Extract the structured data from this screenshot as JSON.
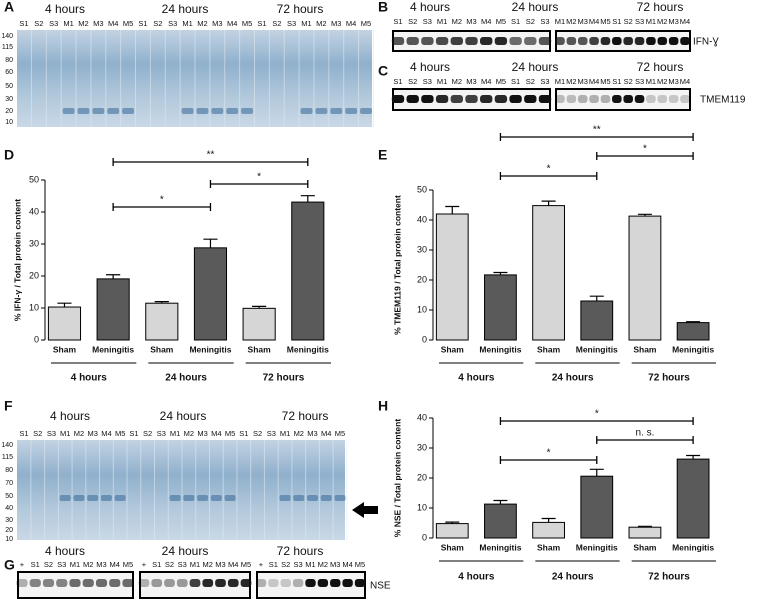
{
  "chart_data": [
    {
      "type": "bar",
      "panel": "D",
      "y_label": "% IFN-γ / Total protein content",
      "categories": [
        "4 hours",
        "24 hours",
        "72 hours"
      ],
      "series": [
        {
          "name": "Sham",
          "color": "#d6d6d6",
          "values": [
            10.3,
            11.5,
            9.9
          ],
          "errors": [
            1.2,
            0.5,
            0.6
          ]
        },
        {
          "name": "Meningitis",
          "color": "#5a5a5a",
          "values": [
            19.1,
            28.8,
            43.1
          ],
          "errors": [
            1.3,
            2.7,
            2.0
          ]
        }
      ],
      "ylim": [
        0,
        50
      ],
      "yticks": [
        0,
        10,
        20,
        30,
        40,
        50
      ],
      "annotations": [
        "**",
        "*",
        "*"
      ]
    },
    {
      "type": "bar",
      "panel": "E",
      "y_label": "% TMEM119 / Total protein content",
      "categories": [
        "4 hours",
        "24 hours",
        "72 hours"
      ],
      "series": [
        {
          "name": "Sham",
          "color": "#d6d6d6",
          "values": [
            42,
            44.8,
            41.3
          ],
          "errors": [
            2.5,
            1.5,
            0.6
          ]
        },
        {
          "name": "Meningitis",
          "color": "#5a5a5a",
          "values": [
            21.7,
            13,
            5.8
          ],
          "errors": [
            0.8,
            1.6,
            0.3
          ]
        }
      ],
      "ylim": [
        0,
        50
      ],
      "yticks": [
        0,
        10,
        20,
        30,
        40,
        50
      ],
      "annotations": [
        "**",
        "*",
        "*"
      ]
    },
    {
      "type": "bar",
      "panel": "H",
      "y_label": "% NSE / Total protein content",
      "categories": [
        "4 hours",
        "24 hours",
        "72 hours"
      ],
      "series": [
        {
          "name": "Sham",
          "color": "#d6d6d6",
          "values": [
            4.8,
            5.2,
            3.6
          ],
          "errors": [
            0.5,
            1.3,
            0.3
          ]
        },
        {
          "name": "Meningitis",
          "color": "#5a5a5a",
          "values": [
            11.3,
            20.6,
            26.3
          ],
          "errors": [
            1.2,
            2.3,
            1.2
          ]
        }
      ],
      "ylim": [
        0,
        40
      ],
      "yticks": [
        0,
        10,
        20,
        30,
        40
      ],
      "annotations": [
        "*",
        "n. s.",
        "*"
      ]
    }
  ],
  "blots": {
    "A": {
      "letter": "A",
      "times": [
        "4 hours",
        "24 hours",
        "72 hours"
      ],
      "lanes": [
        [
          "S1",
          "S2",
          "S3",
          "M1",
          "M2",
          "M3",
          "M4",
          "M5",
          "S1",
          "S2",
          "S3",
          "M1",
          "M2",
          "M3",
          "M4",
          "M5",
          "S1",
          "S2",
          "S3",
          "M1",
          "M2",
          "M3",
          "M4",
          "M5"
        ]
      ],
      "ladder": [
        140,
        115,
        80,
        60,
        50,
        30,
        20,
        10
      ]
    },
    "B": {
      "letter": "B",
      "times": [
        "4 hours",
        "24 hours",
        "72 hours"
      ],
      "lanes": [
        [
          "S1",
          "S2",
          "S3",
          "M1",
          "M2",
          "M3",
          "M4",
          "M5",
          "S1",
          "S2",
          "S3"
        ],
        [
          "M1",
          "M2",
          "M3",
          "M4",
          "M5",
          "S1",
          "S2",
          "S3",
          "M1",
          "M2",
          "M3",
          "M4"
        ]
      ],
      "target": "IFN-Ɣ"
    },
    "C": {
      "letter": "C",
      "times": [
        "4 hours",
        "24 hours",
        "72 hours"
      ],
      "lanes": [
        [
          "S1",
          "S2",
          "S3",
          "M1",
          "M2",
          "M3",
          "M4",
          "M5",
          "S1",
          "S2",
          "S3"
        ],
        [
          "M1",
          "M2",
          "M3",
          "M4",
          "M5",
          "S1",
          "S2",
          "S3",
          "M1",
          "M2",
          "M3",
          "M4"
        ]
      ],
      "target": "TMEM119"
    },
    "F": {
      "letter": "F",
      "times": [
        "4 hours",
        "24 hours",
        "72 hours"
      ],
      "lanes": [
        [
          "S1",
          "S2",
          "S3",
          "M1",
          "M2",
          "M3",
          "M4",
          "M5",
          "S1",
          "S2",
          "S3",
          "M1",
          "M2",
          "M3",
          "M4",
          "M5",
          "S1",
          "S2",
          "S3",
          "M1",
          "M2",
          "M3",
          "M4",
          "M5"
        ]
      ],
      "ladder": [
        140,
        115,
        80,
        70,
        50,
        40,
        30,
        20,
        10
      ]
    },
    "G": {
      "letter": "G",
      "times": [
        "4 hours",
        "24 hours",
        "72 hours"
      ],
      "lanes": [
        [
          "+",
          "S1",
          "S2",
          "S3",
          "M1",
          "M2",
          "M3",
          "M4",
          "M5"
        ],
        [
          "+",
          "S1",
          "S2",
          "S3",
          "M1",
          "M2",
          "M3",
          "M4",
          "M5"
        ],
        [
          "+",
          "S1",
          "S2",
          "S3",
          "M1",
          "M2",
          "M3",
          "M4",
          "M5"
        ]
      ],
      "target": "NSE"
    }
  }
}
